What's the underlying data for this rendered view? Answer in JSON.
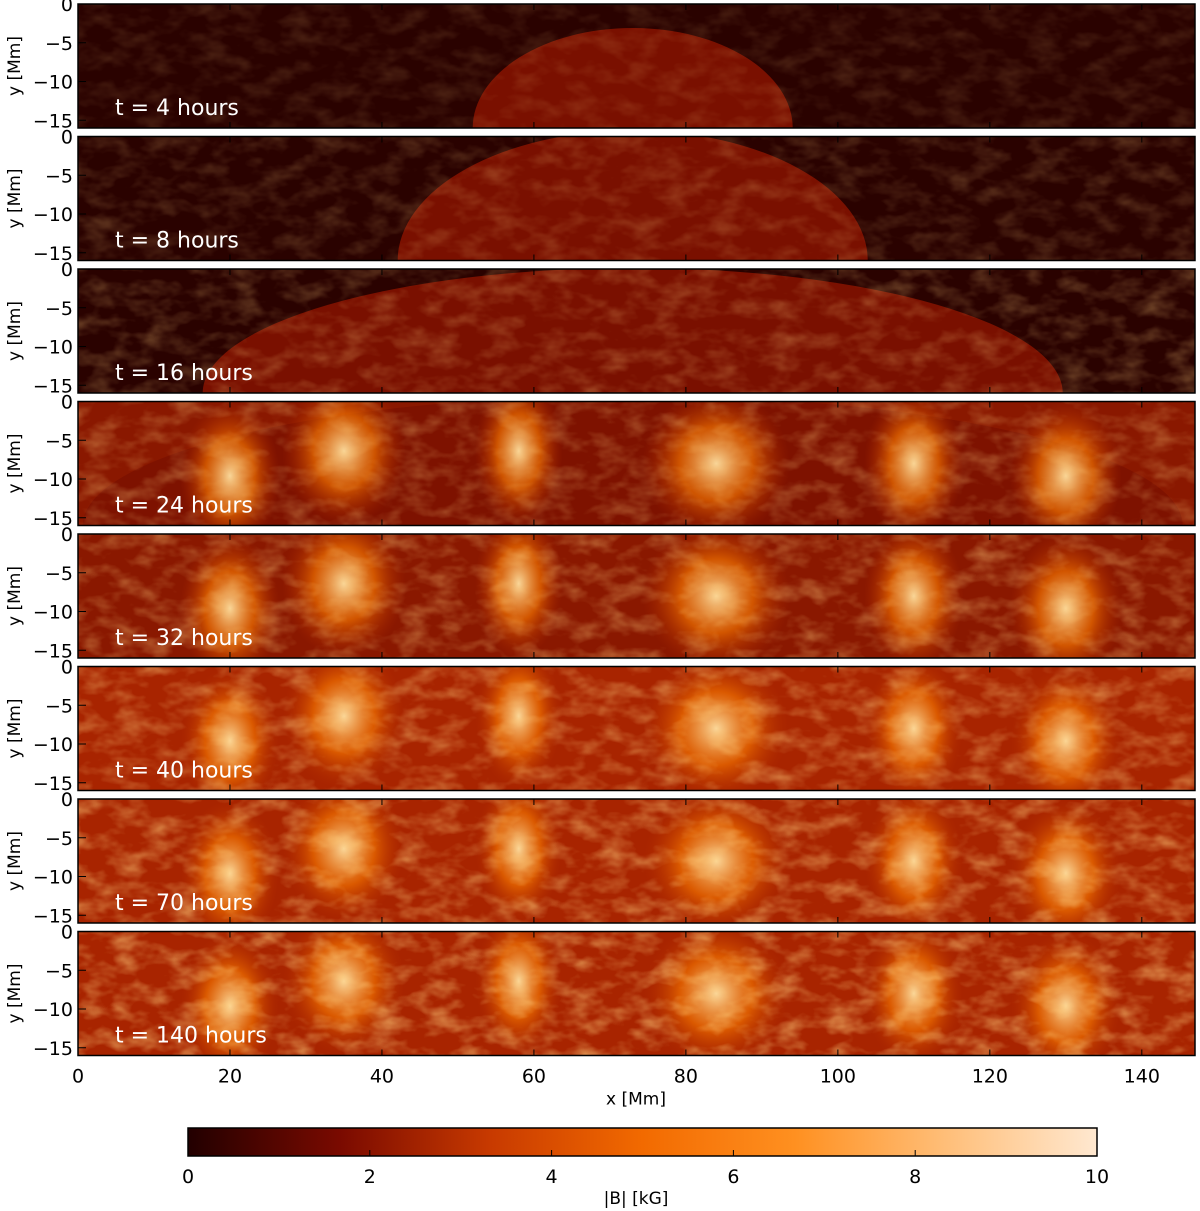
{
  "chart_data": {
    "type": "heatmap",
    "quantity": "|B|",
    "xlabel": "x [Mm]",
    "ylabel": "y [Mm]",
    "xlim": [
      0,
      147
    ],
    "ylim": [
      -16,
      0
    ],
    "x_ticks": [
      0,
      20,
      40,
      60,
      80,
      100,
      120,
      140
    ],
    "y_ticks": [
      0,
      -5,
      -10,
      -15
    ],
    "colorbar": {
      "label": "|B| [kG]",
      "range": [
        0,
        10
      ],
      "ticks": [
        0,
        2,
        4,
        6,
        8,
        10
      ],
      "colors": [
        "#220000",
        "#7a0a00",
        "#c83a00",
        "#f26a00",
        "#ff9020",
        "#ffbe78",
        "#ffe8d0"
      ]
    },
    "panels": [
      {
        "label": "t  =  4 hours",
        "time_hours": 4
      },
      {
        "label": "t  =  8 hours",
        "time_hours": 8
      },
      {
        "label": "t  =  16 hours",
        "time_hours": 16
      },
      {
        "label": "t  =  24 hours",
        "time_hours": 24
      },
      {
        "label": "t  =  32 hours",
        "time_hours": 32
      },
      {
        "label": "t  =  40 hours",
        "time_hours": 40
      },
      {
        "label": "t  =  70 hours",
        "time_hours": 70
      },
      {
        "label": "t  =  140 hours",
        "time_hours": 140
      }
    ]
  }
}
